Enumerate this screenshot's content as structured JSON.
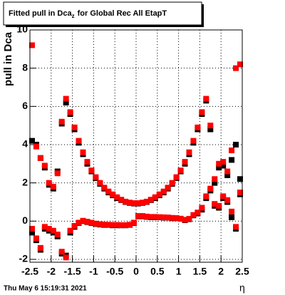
{
  "chart_data": {
    "type": "scatter",
    "title": {
      "main": "Fitted pull in Dca",
      "sub": "z",
      "rest": "for Global Rec All EtapT"
    },
    "ylabel": "pull in Dca",
    "xlabel": "η",
    "footer": "Thu May  6 15:19:31 2021",
    "xlim": [
      -2.5,
      2.5
    ],
    "ylim": [
      -2.15,
      10
    ],
    "xticks": [
      -2.5,
      -2,
      -1.5,
      -1,
      -0.5,
      0,
      0.5,
      1,
      1.5,
      2,
      2.5
    ],
    "yticks": [
      -2,
      0,
      2,
      4,
      6,
      8,
      10
    ],
    "grid": true,
    "x": [
      -2.45,
      -2.35,
      -2.25,
      -2.15,
      -2.05,
      -1.95,
      -1.85,
      -1.75,
      -1.65,
      -1.55,
      -1.45,
      -1.35,
      -1.25,
      -1.15,
      -1.05,
      -0.95,
      -0.85,
      -0.75,
      -0.65,
      -0.55,
      -0.45,
      -0.35,
      -0.25,
      -0.15,
      -0.05,
      0.05,
      0.15,
      0.25,
      0.35,
      0.45,
      0.55,
      0.65,
      0.75,
      0.85,
      0.95,
      1.05,
      1.15,
      1.25,
      1.35,
      1.45,
      1.55,
      1.65,
      1.75,
      1.85,
      1.95,
      2.05,
      2.15,
      2.25,
      2.35,
      2.45
    ],
    "series": [
      {
        "color": "#000000",
        "values": [
          4.2,
          4.0,
          3.3,
          2.8,
          1.9,
          1.7,
          2.6,
          5.1,
          6.2,
          5.6,
          4.8,
          4.1,
          3.5,
          3.0,
          2.6,
          2.25,
          1.95,
          1.7,
          1.5,
          1.35,
          1.2,
          1.1,
          1.0,
          0.95,
          0.92,
          0.92,
          0.95,
          1.0,
          1.1,
          1.2,
          1.35,
          1.5,
          1.7,
          1.95,
          2.25,
          2.6,
          3.0,
          3.5,
          4.1,
          4.8,
          5.6,
          6.3,
          4.8,
          2.0,
          2.8,
          2.9,
          2.4,
          3.2,
          4.0,
          2.2
        ]
      },
      {
        "color": "#ff0000",
        "values": [
          9.2,
          3.9,
          3.3,
          2.9,
          2.0,
          1.8,
          2.5,
          5.2,
          6.4,
          5.7,
          4.9,
          4.2,
          3.6,
          3.1,
          2.65,
          2.3,
          2.0,
          1.75,
          1.55,
          1.4,
          1.25,
          1.12,
          1.02,
          0.97,
          0.94,
          0.94,
          0.97,
          1.02,
          1.12,
          1.25,
          1.4,
          1.55,
          1.75,
          2.0,
          2.3,
          2.65,
          3.1,
          3.6,
          4.2,
          4.9,
          5.7,
          6.4,
          5.0,
          2.2,
          3.0,
          3.1,
          2.6,
          3.7,
          8.0,
          8.2
        ]
      },
      {
        "color": "#000000",
        "values": [
          -0.6,
          -1.0,
          -1.5,
          -0.4,
          -0.5,
          -0.6,
          -0.8,
          -1.7,
          -1.8,
          -0.6,
          -0.3,
          -0.1,
          0.0,
          -0.05,
          -0.1,
          -0.15,
          -0.18,
          -0.2,
          -0.2,
          -0.22,
          -0.22,
          -0.22,
          -0.22,
          -0.2,
          -0.1,
          0.25,
          0.25,
          0.22,
          0.2,
          0.2,
          0.2,
          0.18,
          0.18,
          0.15,
          0.15,
          0.12,
          0.05,
          0.1,
          0.3,
          0.4,
          0.6,
          1.2,
          1.6,
          0.8,
          0.7,
          1.2,
          1.0,
          0.2,
          -0.4,
          1.4
        ]
      },
      {
        "color": "#ff0000",
        "values": [
          -0.4,
          -0.9,
          -1.4,
          -0.3,
          -0.4,
          -0.5,
          -0.7,
          -1.6,
          -1.9,
          -0.5,
          -0.25,
          -0.08,
          0.02,
          -0.03,
          -0.08,
          -0.13,
          -0.16,
          -0.18,
          -0.19,
          -0.2,
          -0.2,
          -0.21,
          -0.21,
          -0.19,
          -0.08,
          0.27,
          0.27,
          0.24,
          0.22,
          0.22,
          0.21,
          0.2,
          0.19,
          0.17,
          0.16,
          0.13,
          0.07,
          0.12,
          0.32,
          0.45,
          0.7,
          1.3,
          1.7,
          0.9,
          0.8,
          1.3,
          1.1,
          0.5,
          -0.3,
          1.5
        ]
      }
    ]
  }
}
